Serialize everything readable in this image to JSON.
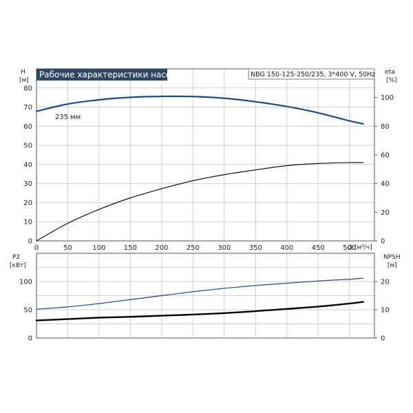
{
  "chart_data": [
    {
      "type": "line",
      "title": "Рабочие характеристики насоса",
      "info": "NBG 150-125-250/235, 3*400 V, 50Hz",
      "xlabel": "Q [м³/ч]",
      "xlim": [
        0,
        540
      ],
      "xticks": [
        "0",
        "50",
        "100",
        "150",
        "200",
        "250",
        "300",
        "350",
        "400",
        "450",
        "500"
      ],
      "ylabel_left": [
        "H",
        "[м]"
      ],
      "ylim_left": [
        0,
        90
      ],
      "yticks_left": [
        "0",
        "10",
        "20",
        "30",
        "40",
        "50",
        "60",
        "70",
        "80"
      ],
      "ylabel_right": [
        "eta",
        "[%]"
      ],
      "ylim_right": [
        0,
        120
      ],
      "yticks_right": [
        "0",
        "20",
        "40",
        "60",
        "80",
        "100"
      ],
      "grid": true,
      "annotation": "235 мм",
      "series": [
        {
          "color": "#1a4a8a",
          "axis": "left",
          "x": [
            0,
            50,
            100,
            150,
            200,
            250,
            300,
            350,
            400,
            450,
            500,
            522
          ],
          "y": [
            67.8,
            71.6,
            73.8,
            75.1,
            75.6,
            75.5,
            74.6,
            72.8,
            70.3,
            67.0,
            62.8,
            61.2
          ]
        },
        {
          "color": "#111111",
          "axis": "right",
          "x": [
            0,
            50,
            100,
            150,
            200,
            250,
            300,
            350,
            400,
            450,
            500,
            522
          ],
          "y": [
            0,
            12.3,
            22.0,
            30.0,
            36.4,
            42.0,
            46.2,
            49.5,
            52.5,
            54.0,
            54.6,
            54.6
          ]
        }
      ]
    },
    {
      "type": "line",
      "xlim": [
        0,
        540
      ],
      "ylabel_left": [
        "P2",
        "[кВт]"
      ],
      "ylim_left": [
        0,
        150
      ],
      "yticks_left": [
        "0",
        "50",
        "100"
      ],
      "ylabel_right": [
        "NPSH",
        "[м]"
      ],
      "ylim_right": [
        0,
        30
      ],
      "yticks_right": [
        "0",
        "10",
        "20"
      ],
      "grid": true,
      "series": [
        {
          "color": "#1a4a8a",
          "axis": "left",
          "x": [
            0,
            50,
            100,
            150,
            200,
            250,
            300,
            350,
            400,
            450,
            500,
            522
          ],
          "y": [
            51,
            55,
            61,
            68,
            75,
            82,
            88,
            93,
            97,
            101,
            104,
            106
          ]
        },
        {
          "color": "#000000",
          "axis": "right",
          "x": [
            0,
            50,
            100,
            150,
            200,
            250,
            300,
            350,
            400,
            450,
            500,
            522
          ],
          "y": [
            6.2,
            6.7,
            7.2,
            7.5,
            7.9,
            8.3,
            8.8,
            9.5,
            10.3,
            11.1,
            12.2,
            12.8
          ]
        }
      ]
    }
  ]
}
